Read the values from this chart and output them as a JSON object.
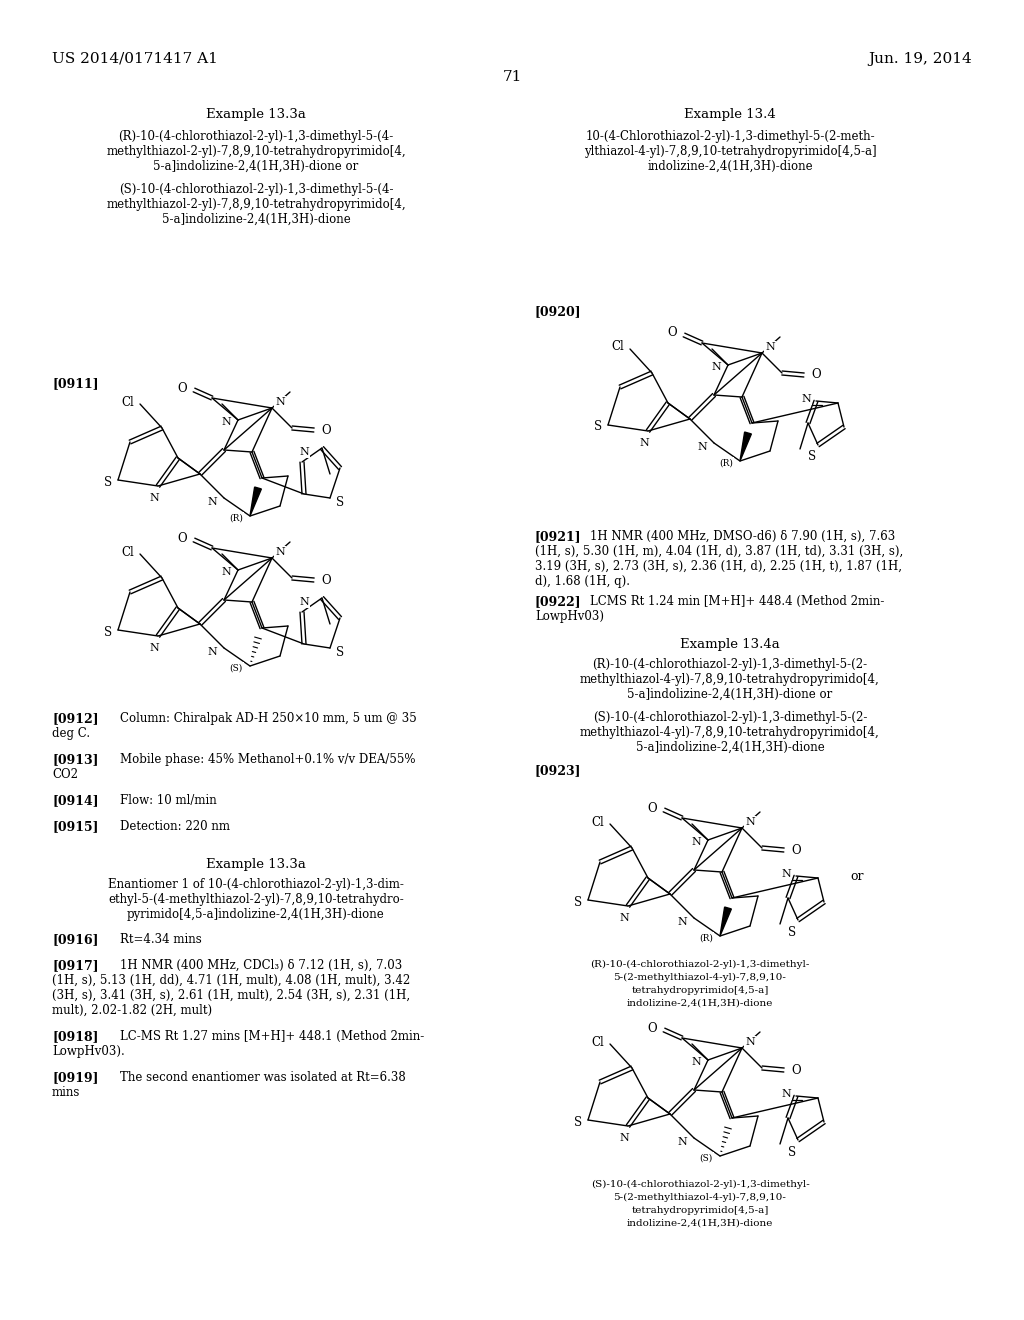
{
  "bg_color": "#ffffff",
  "header_left": "US 2014/0171417 A1",
  "header_right": "Jun. 19, 2014",
  "page_number": "71",
  "text_color": "#000000",
  "font_family": "DejaVu Serif"
}
